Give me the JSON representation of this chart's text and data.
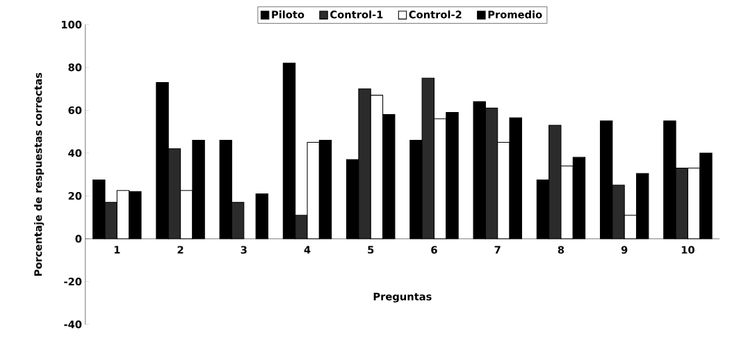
{
  "chart_data": {
    "type": "bar",
    "xlabel": "Preguntas",
    "ylabel": "Porcentaje de respuestas correctas",
    "categories": [
      "1",
      "2",
      "3",
      "4",
      "5",
      "6",
      "7",
      "8",
      "9",
      "10"
    ],
    "series": [
      {
        "name": "Piloto",
        "color": "#000000",
        "values": [
          27.5,
          73,
          46,
          82,
          37,
          46,
          64,
          27.5,
          55,
          55
        ]
      },
      {
        "name": "Control-1",
        "color": "#2b2b2b",
        "values": [
          17,
          42,
          17,
          11,
          70,
          75,
          61,
          53,
          25,
          33
        ]
      },
      {
        "name": "Control-2",
        "color": "#ffffff",
        "values": [
          22.5,
          22.5,
          null,
          45,
          67,
          56,
          45,
          34,
          11,
          33
        ]
      },
      {
        "name": "Promedio",
        "color": "#000000",
        "values": [
          22,
          46,
          21,
          46,
          58,
          59,
          56.5,
          38,
          30.5,
          40
        ]
      }
    ],
    "ylim": [
      -40,
      100
    ],
    "yticks": [
      -40,
      -20,
      0,
      20,
      40,
      60,
      80,
      100
    ],
    "grid": false,
    "legend": "top"
  }
}
